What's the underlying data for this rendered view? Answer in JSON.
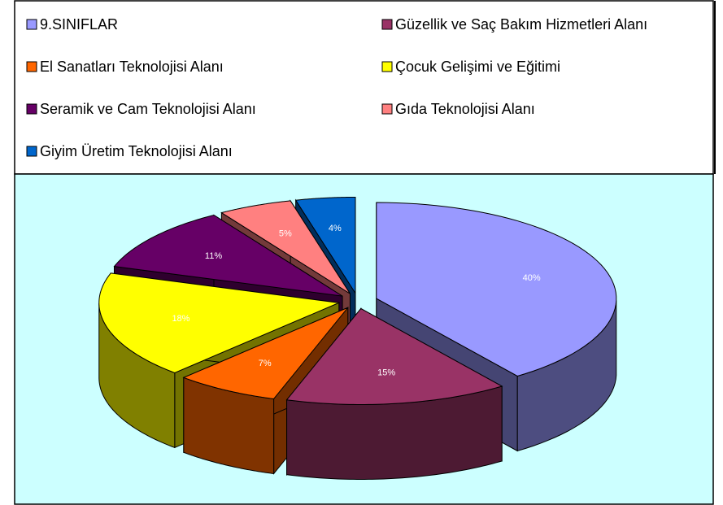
{
  "chart_data": {
    "type": "pie",
    "categories": [
      "9.SINIFLAR",
      "Güzellik ve Saç Bakım Hizmetleri Alanı",
      "El Sanatları Teknolojisi Alanı",
      "Çocuk Gelişimi ve Eğitimi",
      "Seramik ve Cam Teknolojisi Alanı",
      "Gıda Teknolojisi Alanı",
      "Giyim Üretim Teknolojisi Alanı"
    ],
    "values": [
      40,
      15,
      7,
      18,
      11,
      5,
      4
    ],
    "value_labels": [
      "40%",
      "15%",
      "7%",
      "18%",
      "11%",
      "5%",
      "4%"
    ],
    "colors": [
      "#9999ff",
      "#993366",
      "#ff6600",
      "#ffff00",
      "#660066",
      "#ff8080",
      "#0066cc"
    ]
  }
}
